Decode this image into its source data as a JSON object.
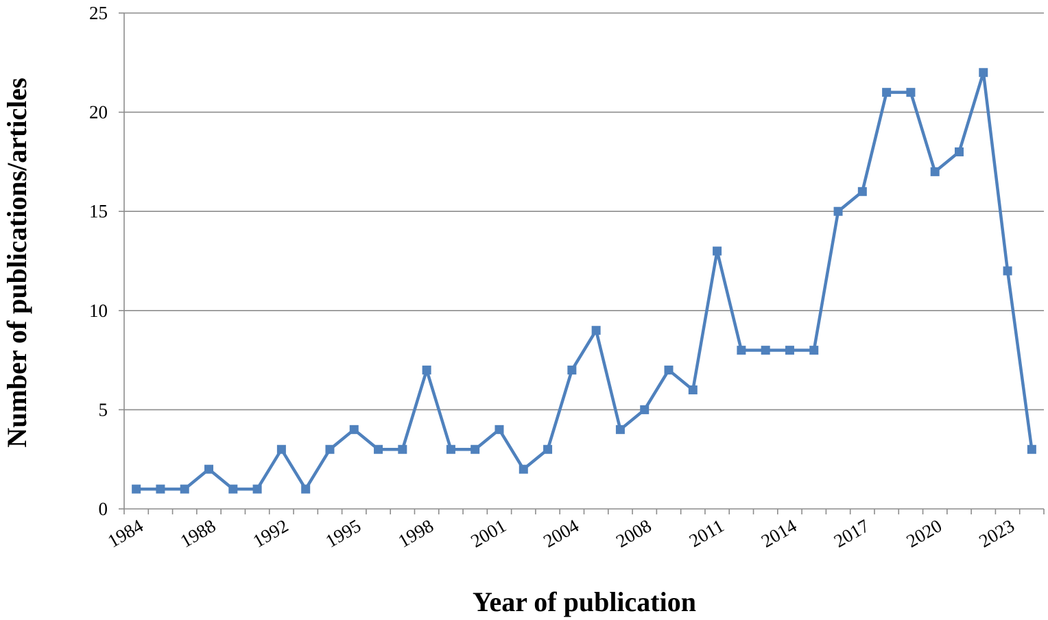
{
  "chart_data": {
    "type": "line",
    "xlabel": "Year of publication",
    "ylabel": "Number of publications/articles",
    "ylim": [
      0,
      25
    ],
    "yticks": [
      "0",
      "5",
      "10",
      "15",
      "20",
      "25"
    ],
    "ytick_values": [
      0,
      5,
      10,
      15,
      20,
      25
    ],
    "xtick_labels": [
      {
        "label": "1984",
        "at": 0
      },
      {
        "label": "1988",
        "at": 3
      },
      {
        "label": "1992",
        "at": 6
      },
      {
        "label": "1995",
        "at": 9
      },
      {
        "label": "1998",
        "at": 12
      },
      {
        "label": "2001",
        "at": 15
      },
      {
        "label": "2004",
        "at": 18
      },
      {
        "label": "2008",
        "at": 21
      },
      {
        "label": "2011",
        "at": 24
      },
      {
        "label": "2014",
        "at": 27
      },
      {
        "label": "2017",
        "at": 30
      },
      {
        "label": "2020",
        "at": 33
      },
      {
        "label": "2023",
        "at": 36
      }
    ],
    "grid": "horizontal",
    "legend": "none",
    "series": [
      {
        "color": "#4F81BD",
        "marker": "square",
        "values": [
          1,
          1,
          1,
          2,
          1,
          1,
          3,
          1,
          3,
          4,
          3,
          3,
          7,
          3,
          3,
          4,
          2,
          3,
          7,
          9,
          4,
          5,
          7,
          6,
          13,
          8,
          8,
          8,
          8,
          15,
          16,
          21,
          21,
          17,
          18,
          22,
          12,
          3
        ]
      }
    ]
  }
}
